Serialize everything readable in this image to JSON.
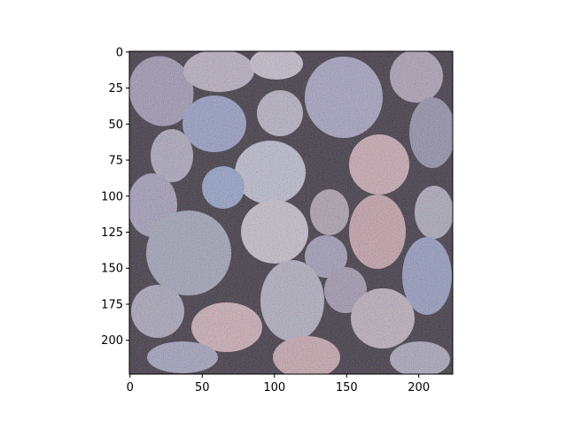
{
  "figure": {
    "kind": "imshow",
    "image_subject": "pebbles",
    "image_shape": [
      224,
      224
    ],
    "x_axis": {
      "ticks": [
        0,
        50,
        100,
        150,
        200
      ],
      "labels": [
        "0",
        "50",
        "100",
        "150",
        "200"
      ]
    },
    "y_axis": {
      "ticks": [
        0,
        25,
        50,
        75,
        100,
        125,
        150,
        175,
        200
      ],
      "labels": [
        "0",
        "25",
        "50",
        "75",
        "100",
        "125",
        "150",
        "175",
        "200"
      ]
    }
  },
  "colors": {
    "background": "#ffffff",
    "axis": "#000000",
    "gap": "#2a2230",
    "stone_light": "#b9b4c6",
    "stone_mid": "#8d8aa6",
    "stone_pink": "#c49aa6",
    "stone_blue": "#7f8fc2"
  }
}
